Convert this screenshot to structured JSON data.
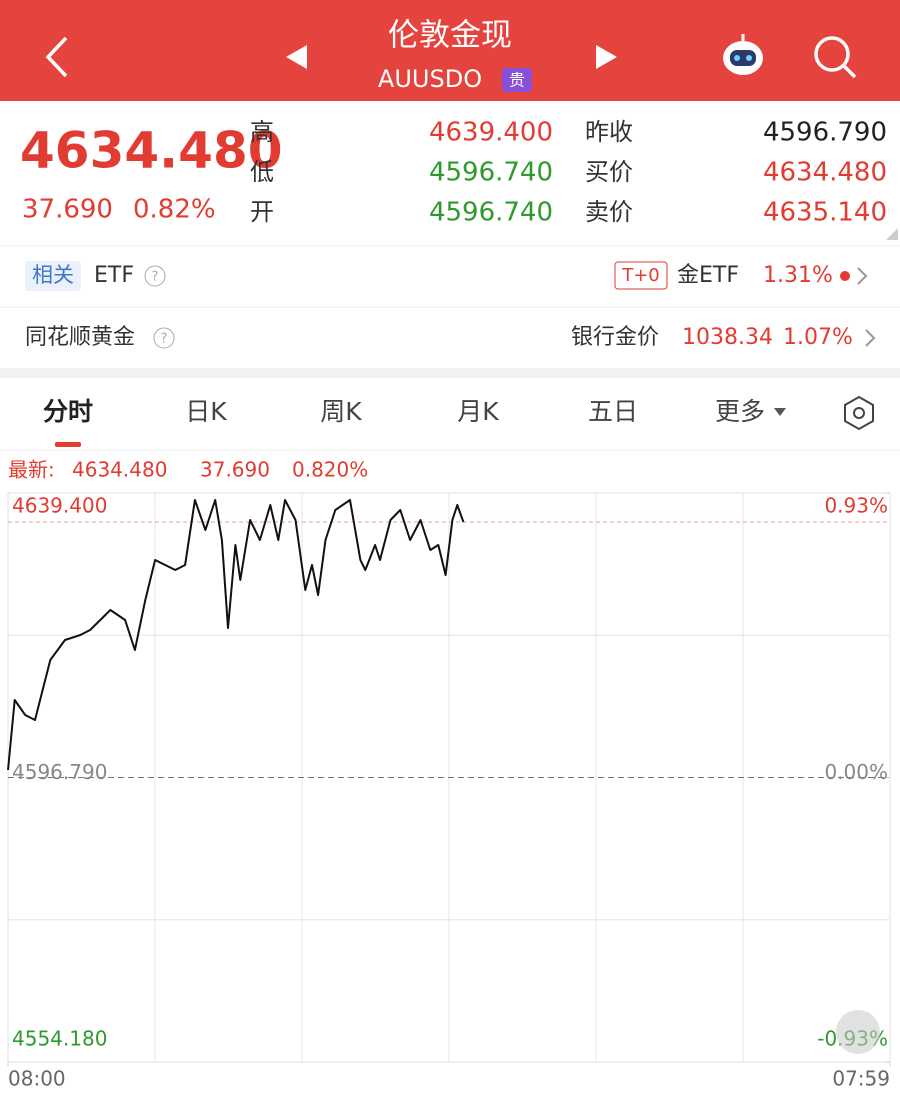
{
  "header": {
    "title": "伦敦金现",
    "code": "AUUSDO",
    "badge": "贵"
  },
  "quote": {
    "price": "4634.480",
    "change": "37.690",
    "change_pct": "0.82%",
    "stats": [
      {
        "label": "高",
        "value": "4639.400"
      },
      {
        "label": "低",
        "value": "4596.740"
      },
      {
        "label": "开",
        "value": "4596.740"
      },
      {
        "label": "昨收",
        "value": "4596.790"
      },
      {
        "label": "买价",
        "value": "4634.480"
      },
      {
        "label": "卖价",
        "value": "4635.140"
      }
    ]
  },
  "related": {
    "tag": "相关",
    "label": "ETF",
    "badge": "T+0",
    "etf_name": "金ETF",
    "etf_pct": "1.31%"
  },
  "gold": {
    "label": "同花顺黄金",
    "bank_label": "银行金价",
    "bank_price": "1038.34",
    "bank_pct": "1.07%"
  },
  "tabs": [
    "分时",
    "日K",
    "周K",
    "月K",
    "五日",
    "更多"
  ],
  "chart_info": {
    "label": "最新:",
    "price": "4634.480",
    "change": "37.690",
    "pct": "0.820%"
  },
  "chart_data": {
    "type": "line",
    "x": [
      0,
      11,
      28,
      44,
      69,
      93,
      118,
      134,
      167,
      191,
      207,
      224,
      240,
      273,
      289,
      305,
      322,
      338,
      349,
      359,
      371,
      379,
      395,
      411,
      428,
      441,
      452,
      469,
      485,
      496,
      506,
      518,
      534,
      558,
      575,
      583,
      599,
      607,
      624,
      640,
      656,
      673,
      689,
      702,
      714,
      725,
      733,
      743
    ],
    "values": [
      4597.91,
      4608.4,
      4606.15,
      4605.4,
      4614.39,
      4617.38,
      4618.13,
      4618.88,
      4621.88,
      4620.38,
      4615.89,
      4623.37,
      4629.36,
      4627.87,
      4628.62,
      4638.35,
      4633.86,
      4638.35,
      4632.36,
      4619.18,
      4631.61,
      4626.37,
      4635.36,
      4632.36,
      4637.6,
      4632.36,
      4638.35,
      4635.36,
      4624.87,
      4628.62,
      4624.12,
      4632.36,
      4636.85,
      4638.35,
      4629.36,
      4627.87,
      4631.61,
      4629.36,
      4635.36,
      4636.85,
      4632.36,
      4635.36,
      4630.86,
      4631.61,
      4627.12,
      4635.36,
      4637.6,
      4635.06
    ],
    "color": "#111111",
    "xlim": [
      0,
      1439
    ],
    "xticks": [
      {
        "value": 0,
        "label": "08:00"
      },
      {
        "value": 1439,
        "label": "07:59"
      }
    ],
    "ylim": [
      4554.18,
      4639.4
    ],
    "yticks": [
      {
        "value": 4639.4,
        "label": "4639.400"
      },
      {
        "value": 4596.79,
        "label": "4596.790"
      },
      {
        "value": 4554.18,
        "label": "4554.180"
      }
    ],
    "y2lim": [
      -0.93,
      0.93
    ],
    "y2ticks": [
      {
        "value": 0.93,
        "label": "0.93%"
      },
      {
        "value": 0,
        "label": "0.00%"
      },
      {
        "value": -0.93,
        "label": "-0.93%"
      }
    ],
    "grid": true
  }
}
